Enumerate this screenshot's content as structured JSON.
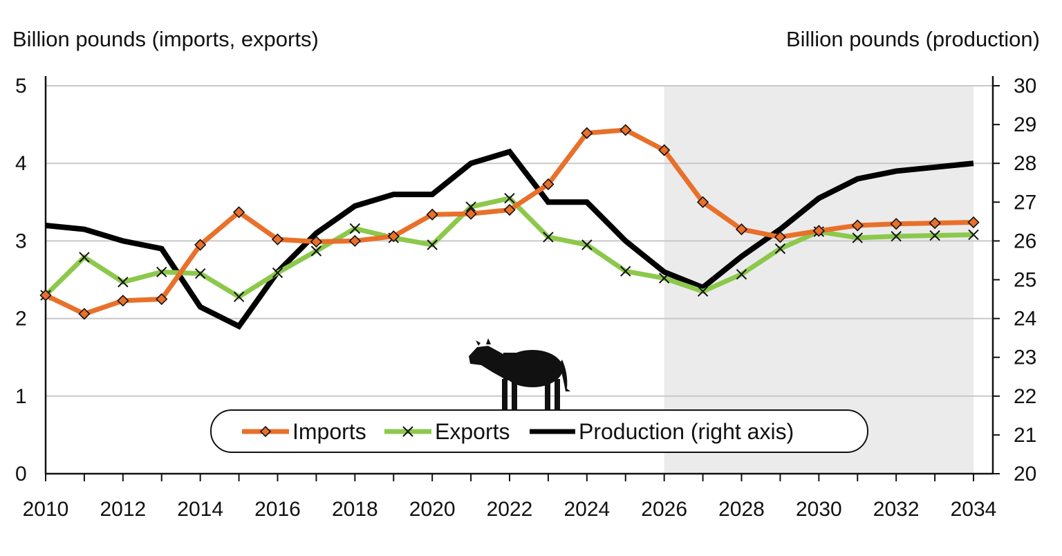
{
  "chart_data": {
    "type": "line",
    "y_left_label": "Billion pounds (imports, exports)",
    "y_right_label": "Billion pounds (production)",
    "x": [
      2010,
      2011,
      2012,
      2013,
      2014,
      2015,
      2016,
      2017,
      2018,
      2019,
      2020,
      2021,
      2022,
      2023,
      2024,
      2025,
      2026,
      2027,
      2028,
      2029,
      2030,
      2031,
      2032,
      2033,
      2034
    ],
    "x_ticks": [
      "2010",
      "2012",
      "2014",
      "2016",
      "2018",
      "2020",
      "2022",
      "2024",
      "2026",
      "2028",
      "2030",
      "2032",
      "2034"
    ],
    "y_left_ticks": [
      "0",
      "1",
      "2",
      "3",
      "4",
      "5"
    ],
    "y_right_ticks": [
      "20",
      "21",
      "22",
      "23",
      "24",
      "25",
      "26",
      "27",
      "28",
      "29",
      "30"
    ],
    "ylim_left": [
      0,
      5
    ],
    "ylim_right": [
      20,
      30
    ],
    "projection_shaded_from": 2026,
    "projection_shaded_to": 2034,
    "grid": "horizontal",
    "legend_position": "bottom-center",
    "series": [
      {
        "name": "Imports",
        "axis": "left",
        "color": "#E8702A",
        "marker": "diamond",
        "values": [
          2.3,
          2.06,
          2.23,
          2.25,
          2.95,
          3.37,
          3.02,
          2.99,
          3.0,
          3.06,
          3.34,
          3.35,
          3.4,
          3.73,
          4.39,
          4.43,
          4.17,
          3.5,
          3.15,
          3.05,
          3.13,
          3.2,
          3.22,
          3.23,
          3.24
        ]
      },
      {
        "name": "Exports",
        "axis": "left",
        "color": "#8CC84B",
        "marker": "x",
        "values": [
          2.3,
          2.79,
          2.47,
          2.6,
          2.58,
          2.28,
          2.59,
          2.87,
          3.16,
          3.04,
          2.95,
          3.44,
          3.55,
          3.05,
          2.95,
          2.61,
          2.52,
          2.35,
          2.57,
          2.9,
          3.12,
          3.04,
          3.06,
          3.07,
          3.08
        ]
      },
      {
        "name": "Production (right axis)",
        "axis": "right",
        "color": "#000000",
        "marker": "none",
        "values": [
          26.4,
          26.3,
          26.0,
          25.8,
          24.3,
          23.8,
          25.2,
          26.2,
          26.9,
          27.2,
          27.2,
          28.0,
          28.3,
          27.0,
          27.0,
          26.0,
          25.2,
          24.8,
          25.6,
          26.3,
          27.1,
          27.6,
          27.8,
          27.9,
          28.0
        ]
      }
    ]
  }
}
